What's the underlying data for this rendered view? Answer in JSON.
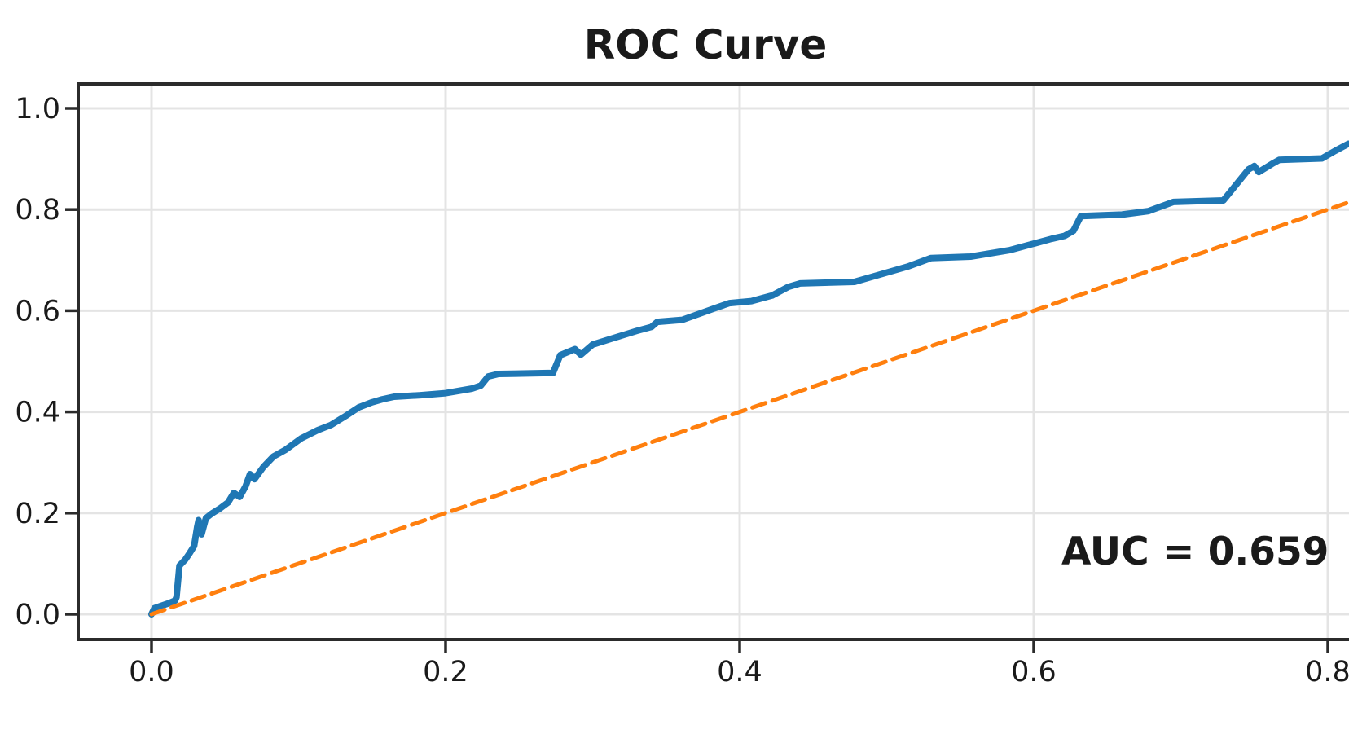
{
  "figure": {
    "title": "ROC Curve",
    "auc_label": "AUC = 0.659"
  },
  "colors": {
    "roc_curve": "#1f77b4",
    "chance_diagonal": "#ff7f0e",
    "grid": "#e4e4e4",
    "spine": "#2b2b2b",
    "tick": "#2b2b2b",
    "text": "#1a1a1a",
    "background": "#ffffff"
  },
  "chart_data": {
    "type": "line",
    "title": "ROC Curve",
    "xlabel": "",
    "ylabel": "",
    "xlim": [
      -0.05,
      1.05
    ],
    "ylim": [
      -0.05,
      1.05
    ],
    "grid": true,
    "legend": "none",
    "x_tick_values": [
      0.0,
      0.2,
      0.4,
      0.6,
      0.8
    ],
    "x_tick_labels": [
      "0.0",
      "0.2",
      "0.4",
      "0.6",
      "0.8"
    ],
    "y_tick_values": [
      0.0,
      0.2,
      0.4,
      0.6,
      0.8,
      1.0
    ],
    "y_tick_labels": [
      "0.0",
      "0.2",
      "0.4",
      "0.6",
      "0.8",
      "1.0"
    ],
    "annotation": {
      "text": "AUC = 0.659",
      "x": 0.619,
      "y": 0.098
    },
    "auc": 0.659,
    "series": [
      {
        "name": "roc-curve",
        "color": "#1f77b4",
        "style": "solid",
        "line_width": 8,
        "points": [
          [
            0.0,
            0.0
          ],
          [
            0.002,
            0.012
          ],
          [
            0.006,
            0.016
          ],
          [
            0.012,
            0.022
          ],
          [
            0.016,
            0.027
          ],
          [
            0.017,
            0.034
          ],
          [
            0.019,
            0.096
          ],
          [
            0.023,
            0.108
          ],
          [
            0.026,
            0.121
          ],
          [
            0.029,
            0.135
          ],
          [
            0.031,
            0.172
          ],
          [
            0.032,
            0.186
          ],
          [
            0.034,
            0.158
          ],
          [
            0.037,
            0.19
          ],
          [
            0.041,
            0.199
          ],
          [
            0.047,
            0.21
          ],
          [
            0.052,
            0.221
          ],
          [
            0.056,
            0.24
          ],
          [
            0.06,
            0.232
          ],
          [
            0.064,
            0.253
          ],
          [
            0.067,
            0.277
          ],
          [
            0.07,
            0.267
          ],
          [
            0.076,
            0.291
          ],
          [
            0.083,
            0.312
          ],
          [
            0.091,
            0.325
          ],
          [
            0.102,
            0.348
          ],
          [
            0.113,
            0.364
          ],
          [
            0.122,
            0.374
          ],
          [
            0.132,
            0.392
          ],
          [
            0.141,
            0.409
          ],
          [
            0.15,
            0.419
          ],
          [
            0.157,
            0.425
          ],
          [
            0.165,
            0.43
          ],
          [
            0.183,
            0.433
          ],
          [
            0.2,
            0.437
          ],
          [
            0.218,
            0.446
          ],
          [
            0.224,
            0.452
          ],
          [
            0.229,
            0.47
          ],
          [
            0.236,
            0.475
          ],
          [
            0.273,
            0.477
          ],
          [
            0.278,
            0.512
          ],
          [
            0.288,
            0.524
          ],
          [
            0.292,
            0.513
          ],
          [
            0.3,
            0.533
          ],
          [
            0.312,
            0.544
          ],
          [
            0.33,
            0.56
          ],
          [
            0.34,
            0.568
          ],
          [
            0.344,
            0.578
          ],
          [
            0.361,
            0.582
          ],
          [
            0.385,
            0.607
          ],
          [
            0.393,
            0.615
          ],
          [
            0.408,
            0.619
          ],
          [
            0.422,
            0.63
          ],
          [
            0.433,
            0.647
          ],
          [
            0.441,
            0.654
          ],
          [
            0.478,
            0.657
          ],
          [
            0.49,
            0.667
          ],
          [
            0.515,
            0.688
          ],
          [
            0.53,
            0.704
          ],
          [
            0.557,
            0.707
          ],
          [
            0.584,
            0.72
          ],
          [
            0.612,
            0.742
          ],
          [
            0.621,
            0.748
          ],
          [
            0.627,
            0.758
          ],
          [
            0.632,
            0.787
          ],
          [
            0.66,
            0.79
          ],
          [
            0.678,
            0.797
          ],
          [
            0.695,
            0.815
          ],
          [
            0.729,
            0.818
          ],
          [
            0.746,
            0.879
          ],
          [
            0.75,
            0.886
          ],
          [
            0.753,
            0.874
          ],
          [
            0.762,
            0.89
          ],
          [
            0.767,
            0.898
          ],
          [
            0.796,
            0.901
          ],
          [
            0.805,
            0.916
          ],
          [
            0.814,
            0.93
          ]
        ]
      },
      {
        "name": "chance-diagonal",
        "color": "#ff7f0e",
        "style": "dashed",
        "line_width": 5,
        "points": [
          [
            0.0,
            0.0
          ],
          [
            1.0,
            1.0
          ]
        ]
      }
    ]
  }
}
